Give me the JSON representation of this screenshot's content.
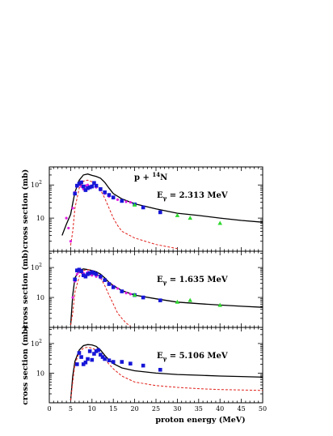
{
  "chart_data": {
    "type": "line",
    "title": "p + 14N",
    "xlabel": "proton energy (MeV)",
    "ylabel": "cross section (mb)",
    "xlim": [
      0,
      50
    ],
    "ylim": [
      1,
      350
    ],
    "yscale": "log",
    "x_ticks": [
      "0",
      "5",
      "10",
      "15",
      "20",
      "25",
      "30",
      "35",
      "40",
      "45",
      "50"
    ],
    "panels": [
      {
        "annotation": "Eγ = 2.313 MeV",
        "series": [
          {
            "style": "solid-black",
            "points": [
              [
                3,
                3
              ],
              [
                4,
                6.5
              ],
              [
                5,
                13
              ],
              [
                5.5,
                28
              ],
              [
                6,
                60
              ],
              [
                7,
                140
              ],
              [
                8,
                200
              ],
              [
                9,
                215
              ],
              [
                10,
                195
              ],
              [
                11,
                180
              ],
              [
                12,
                160
              ],
              [
                13,
                120
              ],
              [
                14,
                80
              ],
              [
                15,
                55
              ],
              [
                17,
                38
              ],
              [
                20,
                27
              ],
              [
                25,
                19
              ],
              [
                30,
                14
              ],
              [
                35,
                12
              ],
              [
                40,
                10
              ],
              [
                45,
                8.5
              ],
              [
                50,
                7.5
              ]
            ]
          },
          {
            "style": "dashed-red",
            "points": [
              [
                5,
                1.5
              ],
              [
                5.5,
                4
              ],
              [
                6,
                20
              ],
              [
                7,
                80
              ],
              [
                8,
                130
              ],
              [
                9,
                140
              ],
              [
                10,
                125
              ],
              [
                11,
                100
              ],
              [
                12,
                70
              ],
              [
                13,
                40
              ],
              [
                14,
                20
              ],
              [
                15,
                10
              ],
              [
                16,
                6
              ],
              [
                17,
                4
              ],
              [
                20,
                2.5
              ],
              [
                25,
                1.6
              ],
              [
                30,
                1.2
              ]
            ]
          },
          {
            "style": "magenta-dots",
            "points": [
              [
                4,
                10
              ],
              [
                4.5,
                5
              ],
              [
                5,
                2
              ],
              [
                5.5,
                20
              ],
              [
                6,
                60
              ],
              [
                6.5,
                90
              ],
              [
                7,
                100
              ],
              [
                7.5,
                90
              ],
              [
                8,
                75
              ],
              [
                8.5,
                95
              ],
              [
                9,
                100
              ],
              [
                9.5,
                90
              ],
              [
                10,
                95
              ],
              [
                11,
                85
              ],
              [
                12,
                70
              ],
              [
                13,
                55
              ],
              [
                14,
                45
              ],
              [
                15,
                40
              ],
              [
                16,
                36
              ],
              [
                17,
                33
              ],
              [
                18,
                31
              ],
              [
                19,
                30
              ]
            ]
          },
          {
            "style": "blue-squares",
            "points": [
              [
                6,
                55
              ],
              [
                6.5,
                95
              ],
              [
                7,
                110
              ],
              [
                7.5,
                120
              ],
              [
                8,
                90
              ],
              [
                8.5,
                70
              ],
              [
                9,
                80
              ],
              [
                9.5,
                85
              ],
              [
                10,
                90
              ],
              [
                10.5,
                115
              ],
              [
                11,
                95
              ],
              [
                12,
                75
              ],
              [
                13,
                60
              ],
              [
                14,
                50
              ],
              [
                15,
                42
              ],
              [
                17,
                33
              ],
              [
                20,
                26
              ],
              [
                22,
                21
              ],
              [
                26,
                15
              ]
            ]
          },
          {
            "style": "green-triangles",
            "points": [
              [
                20,
                25
              ],
              [
                30,
                12
              ],
              [
                33,
                10
              ],
              [
                40,
                7
              ]
            ]
          }
        ]
      },
      {
        "annotation": "Eγ = 1.635 MeV",
        "series": [
          {
            "style": "solid-black",
            "points": [
              [
                5,
                1.2
              ],
              [
                5.5,
                12
              ],
              [
                6,
                45
              ],
              [
                7,
                80
              ],
              [
                8,
                90
              ],
              [
                9,
                85
              ],
              [
                10,
                80
              ],
              [
                11,
                72
              ],
              [
                12,
                60
              ],
              [
                13,
                45
              ],
              [
                14,
                32
              ],
              [
                15,
                25
              ],
              [
                17,
                17
              ],
              [
                20,
                12
              ],
              [
                25,
                9
              ],
              [
                30,
                7
              ],
              [
                35,
                6.2
              ],
              [
                40,
                5.6
              ],
              [
                45,
                5.1
              ],
              [
                50,
                4.7
              ]
            ]
          },
          {
            "style": "dashed-red",
            "points": [
              [
                5,
                1.2
              ],
              [
                5.5,
                3
              ],
              [
                6,
                15
              ],
              [
                7,
                50
              ],
              [
                8,
                80
              ],
              [
                9,
                85
              ],
              [
                10,
                80
              ],
              [
                11,
                65
              ],
              [
                12,
                45
              ],
              [
                13,
                25
              ],
              [
                14,
                12
              ],
              [
                15,
                6
              ],
              [
                16,
                3
              ],
              [
                17,
                2
              ],
              [
                18,
                1.4
              ],
              [
                19,
                1.1
              ]
            ]
          },
          {
            "style": "magenta-dots",
            "points": [
              [
                5.5,
                10
              ],
              [
                6,
                35
              ],
              [
                6.5,
                60
              ],
              [
                7,
                70
              ],
              [
                7.5,
                75
              ],
              [
                8,
                65
              ],
              [
                8.5,
                55
              ],
              [
                9,
                70
              ],
              [
                9.5,
                60
              ],
              [
                10,
                55
              ],
              [
                11,
                50
              ],
              [
                12,
                45
              ],
              [
                13,
                38
              ],
              [
                14,
                30
              ],
              [
                15,
                24
              ],
              [
                16,
                20
              ],
              [
                17,
                16
              ],
              [
                18,
                14
              ],
              [
                19,
                13
              ]
            ]
          },
          {
            "style": "blue-squares",
            "points": [
              [
                6,
                40
              ],
              [
                6.5,
                80
              ],
              [
                7,
                85
              ],
              [
                7.5,
                75
              ],
              [
                8,
                55
              ],
              [
                8.5,
                50
              ],
              [
                9,
                60
              ],
              [
                9.5,
                65
              ],
              [
                10,
                70
              ],
              [
                10.5,
                65
              ],
              [
                11,
                60
              ],
              [
                12,
                50
              ],
              [
                13,
                38
              ],
              [
                14,
                28
              ],
              [
                15,
                22
              ],
              [
                17,
                16
              ],
              [
                20,
                12
              ],
              [
                22,
                10
              ],
              [
                26,
                8
              ]
            ]
          },
          {
            "style": "green-triangles",
            "points": [
              [
                20,
                12
              ],
              [
                30,
                7
              ],
              [
                33,
                8
              ],
              [
                40,
                5.5
              ]
            ]
          }
        ]
      },
      {
        "annotation": "Eγ = 5.106 MeV",
        "series": [
          {
            "style": "solid-black",
            "points": [
              [
                5,
                1.2
              ],
              [
                5.5,
                8
              ],
              [
                6,
                25
              ],
              [
                7,
                60
              ],
              [
                8,
                85
              ],
              [
                9,
                92
              ],
              [
                10,
                90
              ],
              [
                11,
                80
              ],
              [
                12,
                60
              ],
              [
                13,
                40
              ],
              [
                14,
                28
              ],
              [
                15,
                21
              ],
              [
                17,
                15
              ],
              [
                20,
                12
              ],
              [
                25,
                10
              ],
              [
                30,
                9
              ],
              [
                35,
                8.5
              ],
              [
                40,
                8
              ],
              [
                45,
                7.7
              ],
              [
                50,
                7.3
              ]
            ]
          },
          {
            "style": "dashed-red",
            "points": [
              [
                5,
                1.2
              ],
              [
                5.5,
                5
              ],
              [
                6,
                20
              ],
              [
                7,
                50
              ],
              [
                8,
                70
              ],
              [
                9,
                75
              ],
              [
                10,
                70
              ],
              [
                11,
                60
              ],
              [
                12,
                45
              ],
              [
                13,
                30
              ],
              [
                14,
                20
              ],
              [
                15,
                14
              ],
              [
                17,
                8
              ],
              [
                20,
                5
              ],
              [
                25,
                3.8
              ],
              [
                30,
                3.3
              ],
              [
                35,
                3
              ],
              [
                40,
                2.8
              ],
              [
                45,
                2.7
              ],
              [
                50,
                2.6
              ]
            ]
          },
          {
            "style": "blue-squares",
            "points": [
              [
                6.5,
                20
              ],
              [
                7,
                48
              ],
              [
                7.5,
                35
              ],
              [
                8,
                20
              ],
              [
                8.5,
                23
              ],
              [
                9,
                30
              ],
              [
                9.5,
                55
              ],
              [
                10,
                28
              ],
              [
                10.5,
                45
              ],
              [
                11,
                55
              ],
              [
                11.5,
                60
              ],
              [
                12,
                42
              ],
              [
                12.5,
                35
              ],
              [
                13,
                30
              ],
              [
                14,
                27
              ],
              [
                15,
                24
              ],
              [
                17,
                24
              ],
              [
                19,
                21
              ],
              [
                22,
                18
              ],
              [
                26,
                13
              ]
            ]
          }
        ]
      }
    ]
  }
}
